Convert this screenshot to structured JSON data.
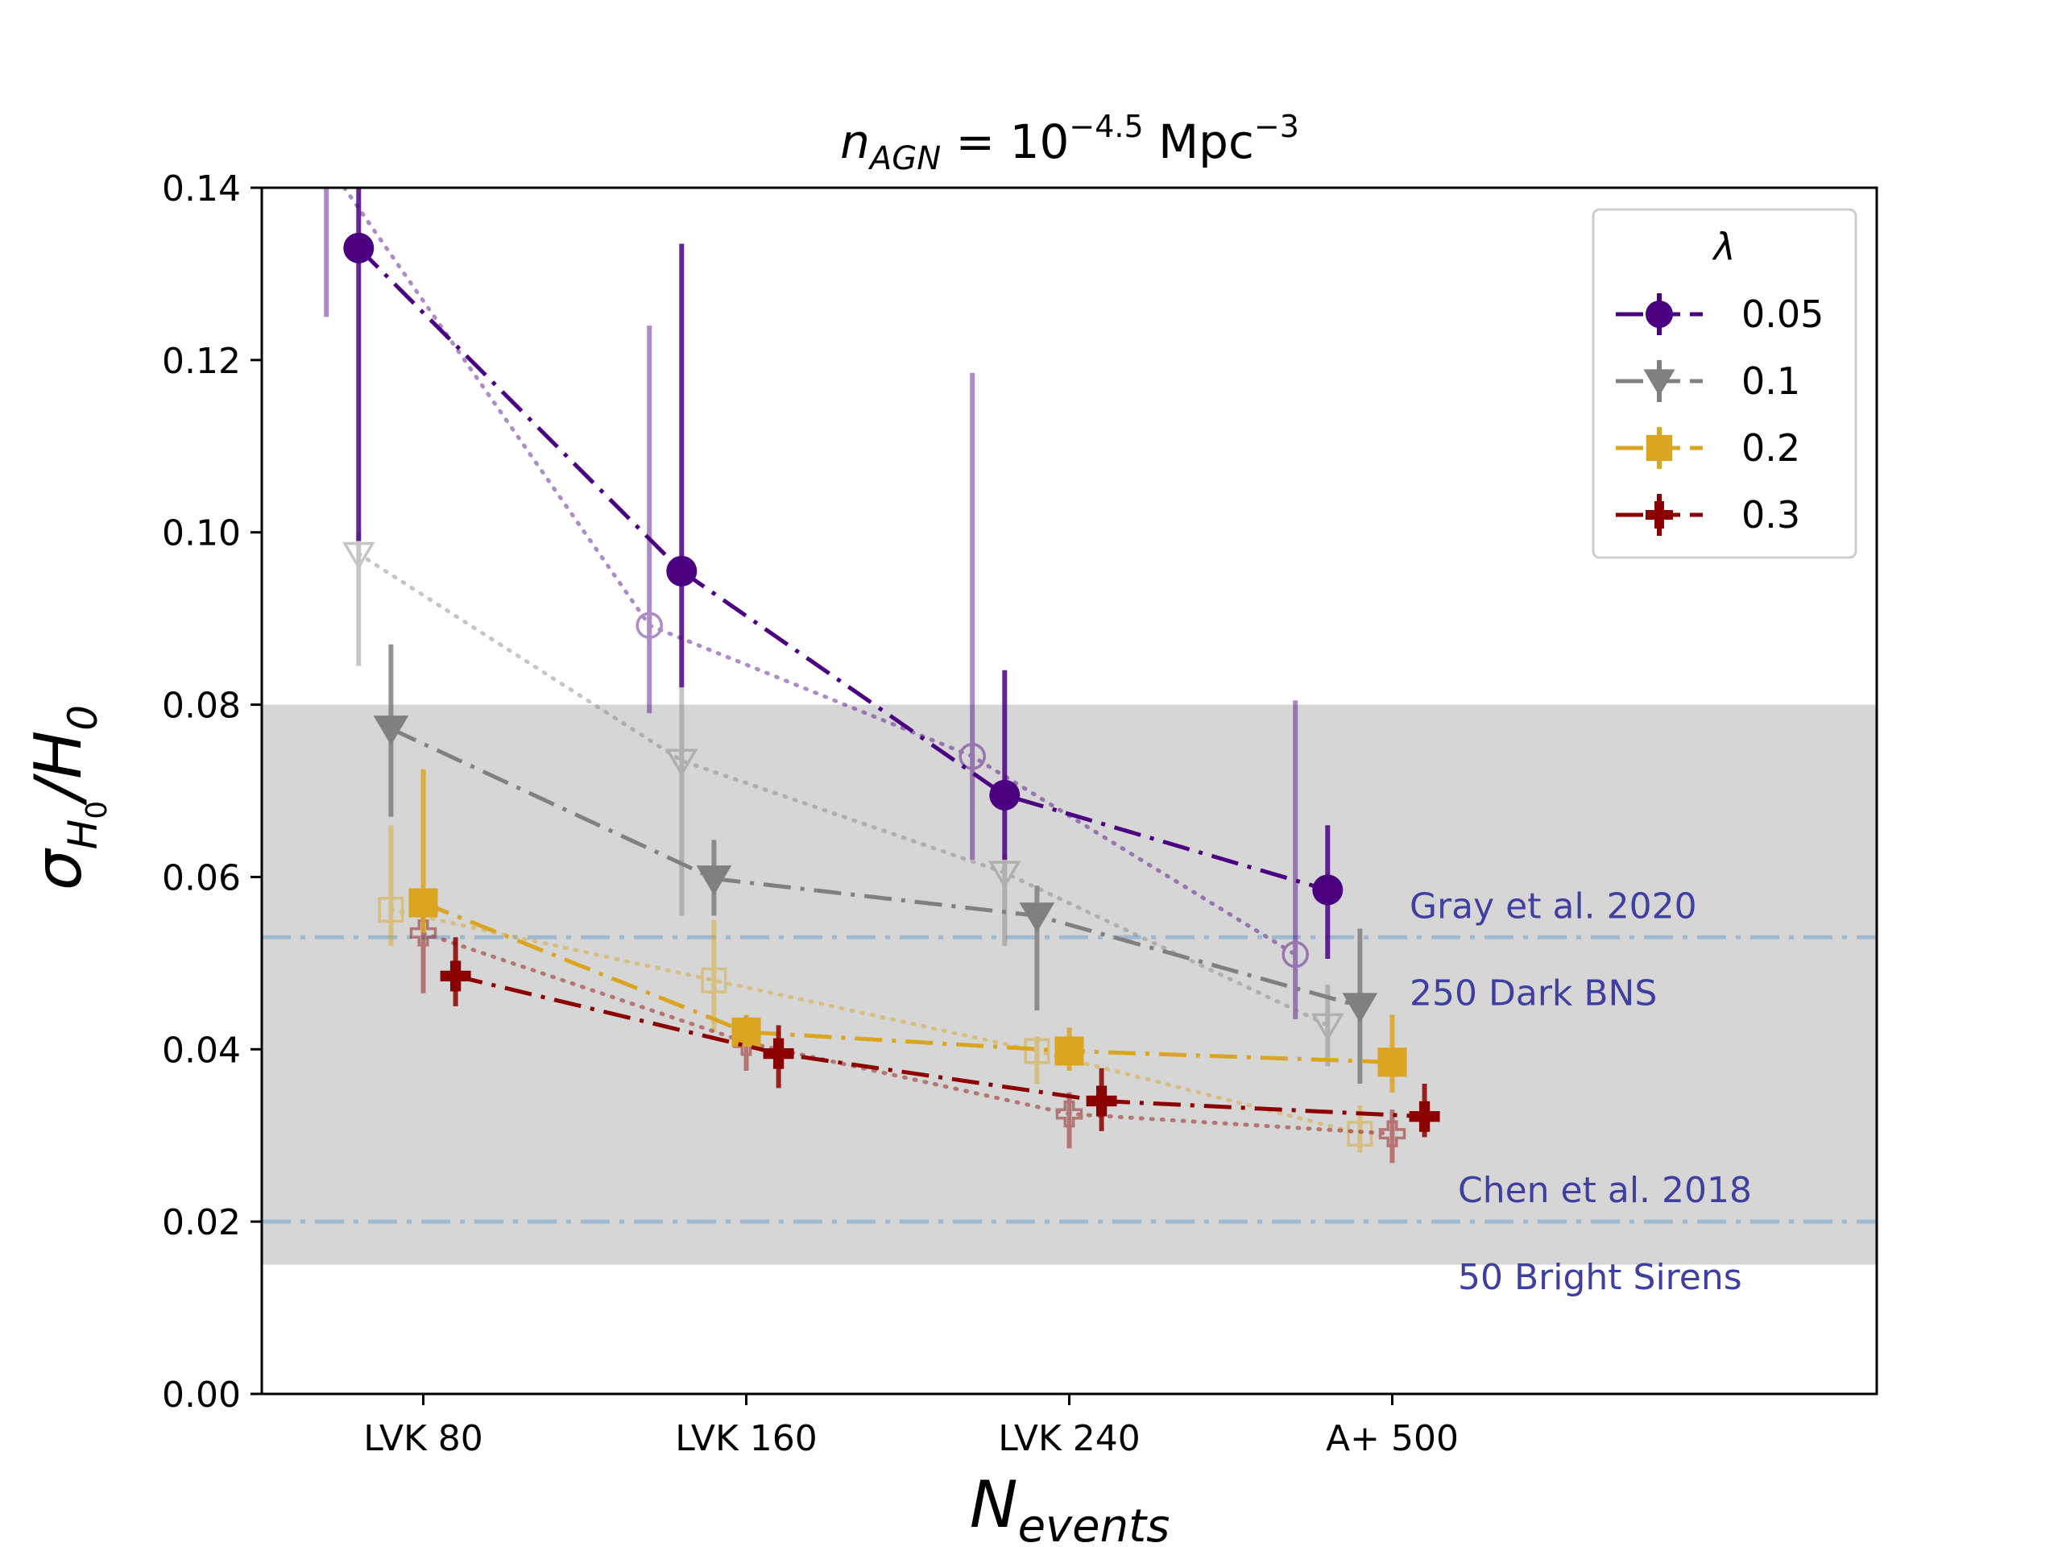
{
  "chart_data": {
    "type": "line",
    "title_parts": {
      "n": "n",
      "sub": "AGN",
      "eq": " = 10",
      "sup": "−4.5",
      "unit": " Mpc",
      "unit_sup": "−3"
    },
    "ylabel_parts": {
      "sigma": "σ",
      "sub": "H",
      "subsub": "0",
      "slash": "/H",
      "sub2": "0"
    },
    "xlabel_parts": {
      "n": "N",
      "sub": "events"
    },
    "ylim": [
      0,
      0.14
    ],
    "xlim": [
      -0.5,
      4.5
    ],
    "yticks": [
      "0.00",
      "0.02",
      "0.04",
      "0.06",
      "0.08",
      "0.10",
      "0.12",
      "0.14"
    ],
    "ytick_values": [
      0,
      0.02,
      0.04,
      0.06,
      0.08,
      0.1,
      0.12,
      0.14
    ],
    "categories": [
      "LVK 80",
      "LVK 160",
      "LVK 240",
      "A+ 500"
    ],
    "band": {
      "y0": 0.015,
      "y1": 0.08,
      "color": "#d6d6d6"
    },
    "reference_lines": [
      {
        "y": 0.053,
        "label1": "Gray et al. 2020",
        "label2": "250 Dark BNS"
      },
      {
        "y": 0.02,
        "label1": "Chen et al. 2018",
        "label2": "50 Bright Sirens"
      }
    ],
    "legend": {
      "title": "λ",
      "placement": "top-right"
    },
    "series": [
      {
        "name": "0.05",
        "color": "#4b0082",
        "marker": "circle",
        "x": [
          -0.2,
          0.8,
          1.8,
          2.8
        ],
        "values": [
          0.133,
          0.0955,
          0.0695,
          0.0585
        ],
        "err_low": [
          0.099,
          0.082,
          0.062,
          0.0505
        ],
        "err_high": [
          0.145,
          0.1335,
          0.084,
          0.066
        ],
        "faint_x": [
          -0.3,
          0.7,
          1.7,
          2.7
        ],
        "faint_values": [
          0.143,
          0.0892,
          0.074,
          0.051
        ],
        "faint_err_low": [
          0.125,
          0.079,
          0.062,
          0.0435
        ],
        "faint_err_high": [
          0.145,
          0.124,
          0.1185,
          0.0805
        ]
      },
      {
        "name": "0.1",
        "color": "#808080",
        "marker": "triangle-down",
        "x": [
          -0.1,
          0.9,
          1.9,
          2.9
        ],
        "values": [
          0.0772,
          0.0598,
          0.0555,
          0.045
        ],
        "err_low": [
          0.067,
          0.0555,
          0.0445,
          0.036
        ],
        "err_high": [
          0.087,
          0.0643,
          0.059,
          0.054
        ],
        "faint_x": [
          -0.2,
          0.8,
          1.8,
          2.8
        ],
        "faint_values": [
          0.0975,
          0.0735,
          0.0605,
          0.0428
        ],
        "faint_err_low": [
          0.0845,
          0.0555,
          0.052,
          0.038
        ],
        "faint_err_high": [
          0.1,
          0.082,
          0.0625,
          0.0475
        ]
      },
      {
        "name": "0.2",
        "color": "#daa520",
        "marker": "square",
        "x": [
          0.0,
          1.0,
          2.0,
          3.0
        ],
        "values": [
          0.057,
          0.042,
          0.0398,
          0.0385
        ],
        "err_low": [
          0.0535,
          0.0405,
          0.0375,
          0.035
        ],
        "err_high": [
          0.0725,
          0.044,
          0.0425,
          0.044
        ],
        "faint_x": [
          -0.1,
          0.9,
          1.9,
          2.9
        ],
        "faint_values": [
          0.0562,
          0.048,
          0.0398,
          0.0302
        ],
        "faint_err_low": [
          0.052,
          0.042,
          0.036,
          0.028
        ],
        "faint_err_high": [
          0.066,
          0.055,
          0.0415,
          0.0335
        ]
      },
      {
        "name": "0.3",
        "color": "#8b0000",
        "marker": "plus",
        "x": [
          0.1,
          1.1,
          2.1,
          3.1
        ],
        "values": [
          0.0485,
          0.0395,
          0.034,
          0.0322
        ],
        "err_low": [
          0.045,
          0.0355,
          0.0305,
          0.0298
        ],
        "err_high": [
          0.053,
          0.0428,
          0.0378,
          0.036
        ],
        "faint_x": [
          0.0,
          1.0,
          2.0,
          3.0
        ],
        "faint_values": [
          0.0535,
          0.0408,
          0.0325,
          0.0302
        ],
        "faint_err_low": [
          0.0465,
          0.0375,
          0.0285,
          0.0268
        ],
        "faint_err_high": [
          0.0555,
          0.0438,
          0.035,
          0.033
        ]
      }
    ]
  }
}
